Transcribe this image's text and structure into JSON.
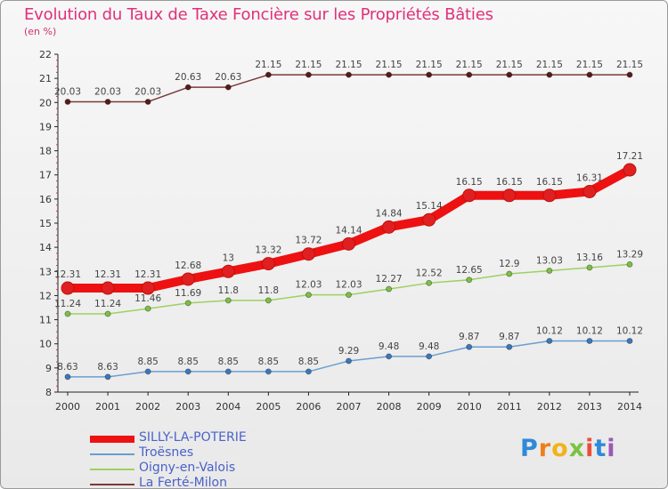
{
  "header": {
    "title": "Evolution du Taux de Taxe Foncière sur les Propriétés Bâties",
    "unit": "(en %)"
  },
  "brand": {
    "text": "Proxiti"
  },
  "chart_data": {
    "type": "line",
    "title": "Evolution du Taux de Taxe Foncière sur les Propriétés Bâties",
    "ylabel": "(en %)",
    "xlabel": "",
    "x": [
      "2000",
      "2001",
      "2002",
      "2003",
      "2004",
      "2005",
      "2006",
      "2007",
      "2008",
      "2009",
      "2010",
      "2011",
      "2012",
      "2013",
      "2014"
    ],
    "ylim": [
      8,
      22
    ],
    "yticks": [
      8,
      9,
      10,
      11,
      12,
      13,
      14,
      15,
      16,
      17,
      18,
      19,
      20,
      21,
      22
    ],
    "grid": false,
    "legend_position": "bottom-left",
    "series": [
      {
        "name": "SILLY-LA-POTERIE",
        "color": "#ee1111",
        "point_color": "#e02020",
        "emphasis": true,
        "values": [
          12.31,
          12.31,
          12.31,
          12.68,
          13,
          13.32,
          13.72,
          14.14,
          14.84,
          15.14,
          16.15,
          16.15,
          16.15,
          16.31,
          17.21
        ],
        "labels": [
          "12.31",
          "12.31",
          "12.31",
          "12.68",
          "13",
          "13.32",
          "13.72",
          "14.14",
          "14.84",
          "15.14",
          "16.15",
          "16.15",
          "16.15",
          "16.31",
          "17.21"
        ]
      },
      {
        "name": "Troësnes",
        "color": "#6a9ed0",
        "point_color": "#3a78c0",
        "emphasis": false,
        "values": [
          8.63,
          8.63,
          8.85,
          8.85,
          8.85,
          8.85,
          8.85,
          9.29,
          9.48,
          9.48,
          9.87,
          9.87,
          10.12,
          10.12,
          10.12
        ],
        "labels": [
          "8.63",
          "8.63",
          "8.85",
          "8.85",
          "8.85",
          "8.85",
          "8.85",
          "9.29",
          "9.48",
          "9.48",
          "9.87",
          "9.87",
          "10.12",
          "10.12",
          "10.12"
        ]
      },
      {
        "name": "Oigny-en-Valois",
        "color": "#9ed060",
        "point_color": "#7cc242",
        "emphasis": false,
        "values": [
          11.24,
          11.24,
          11.46,
          11.69,
          11.8,
          11.8,
          12.03,
          12.03,
          12.27,
          12.52,
          12.65,
          12.9,
          13.03,
          13.16,
          13.29
        ],
        "labels": [
          "11.24",
          "11.24",
          "11.46",
          "11.69",
          "11.8",
          "11.8",
          "12.03",
          "12.03",
          "12.27",
          "12.52",
          "12.65",
          "12.9",
          "13.03",
          "13.16",
          "13.29"
        ]
      },
      {
        "name": "La Ferté-Milon",
        "color": "#7a3a3a",
        "point_color": "#5a1a1a",
        "emphasis": false,
        "values": [
          20.03,
          20.03,
          20.03,
          20.63,
          20.63,
          21.15,
          21.15,
          21.15,
          21.15,
          21.15,
          21.15,
          21.15,
          21.15,
          21.15,
          21.15
        ],
        "labels": [
          "20.03",
          "20.03",
          "20.03",
          "20.63",
          "20.63",
          "21.15",
          "21.15",
          "21.15",
          "21.15",
          "21.15",
          "21.15",
          "21.15",
          "21.15",
          "21.15",
          "21.15"
        ]
      }
    ]
  }
}
